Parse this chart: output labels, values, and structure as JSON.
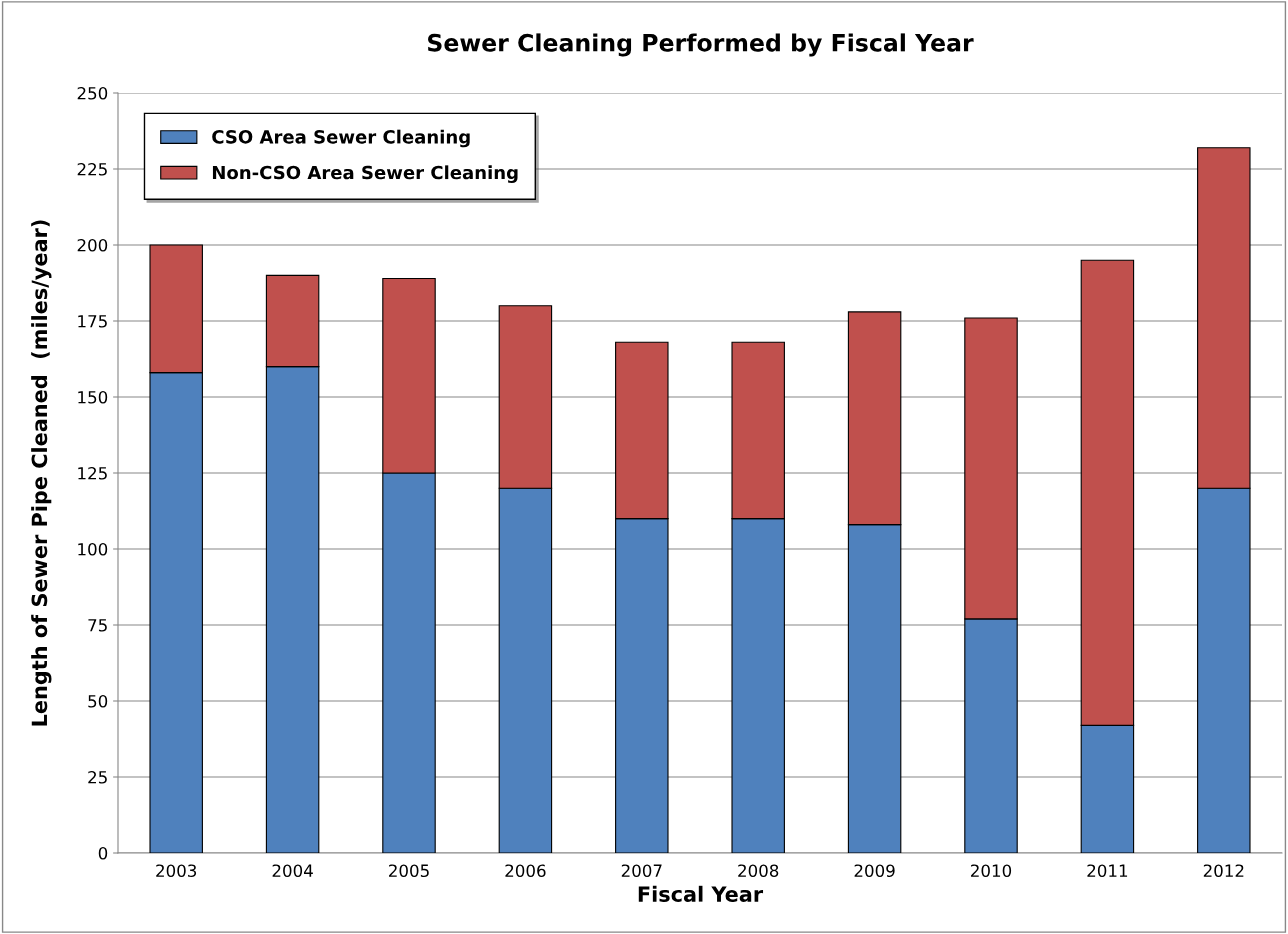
{
  "chart_data": {
    "type": "bar",
    "stacked": true,
    "title": "Sewer Cleaning Performed by Fiscal Year",
    "xlabel": "Fiscal Year",
    "ylabel": "Length of Sewer Pipe Cleaned  (miles/year)",
    "categories": [
      "2003",
      "2004",
      "2005",
      "2006",
      "2007",
      "2008",
      "2009",
      "2010",
      "2011",
      "2012"
    ],
    "series": [
      {
        "name": "CSO Area Sewer Cleaning",
        "color": "#4f81bd",
        "values": [
          158,
          160,
          125,
          120,
          110,
          110,
          108,
          77,
          42,
          120
        ]
      },
      {
        "name": "Non-CSO Area Sewer Cleaning",
        "color": "#c0504d",
        "values": [
          42,
          30,
          64,
          60,
          58,
          58,
          70,
          99,
          153,
          112
        ]
      }
    ],
    "ylim": [
      0,
      250
    ],
    "yticks": [
      0,
      25,
      50,
      75,
      100,
      125,
      150,
      175,
      200,
      225,
      250
    ],
    "grid": "y",
    "legend": "top left"
  }
}
